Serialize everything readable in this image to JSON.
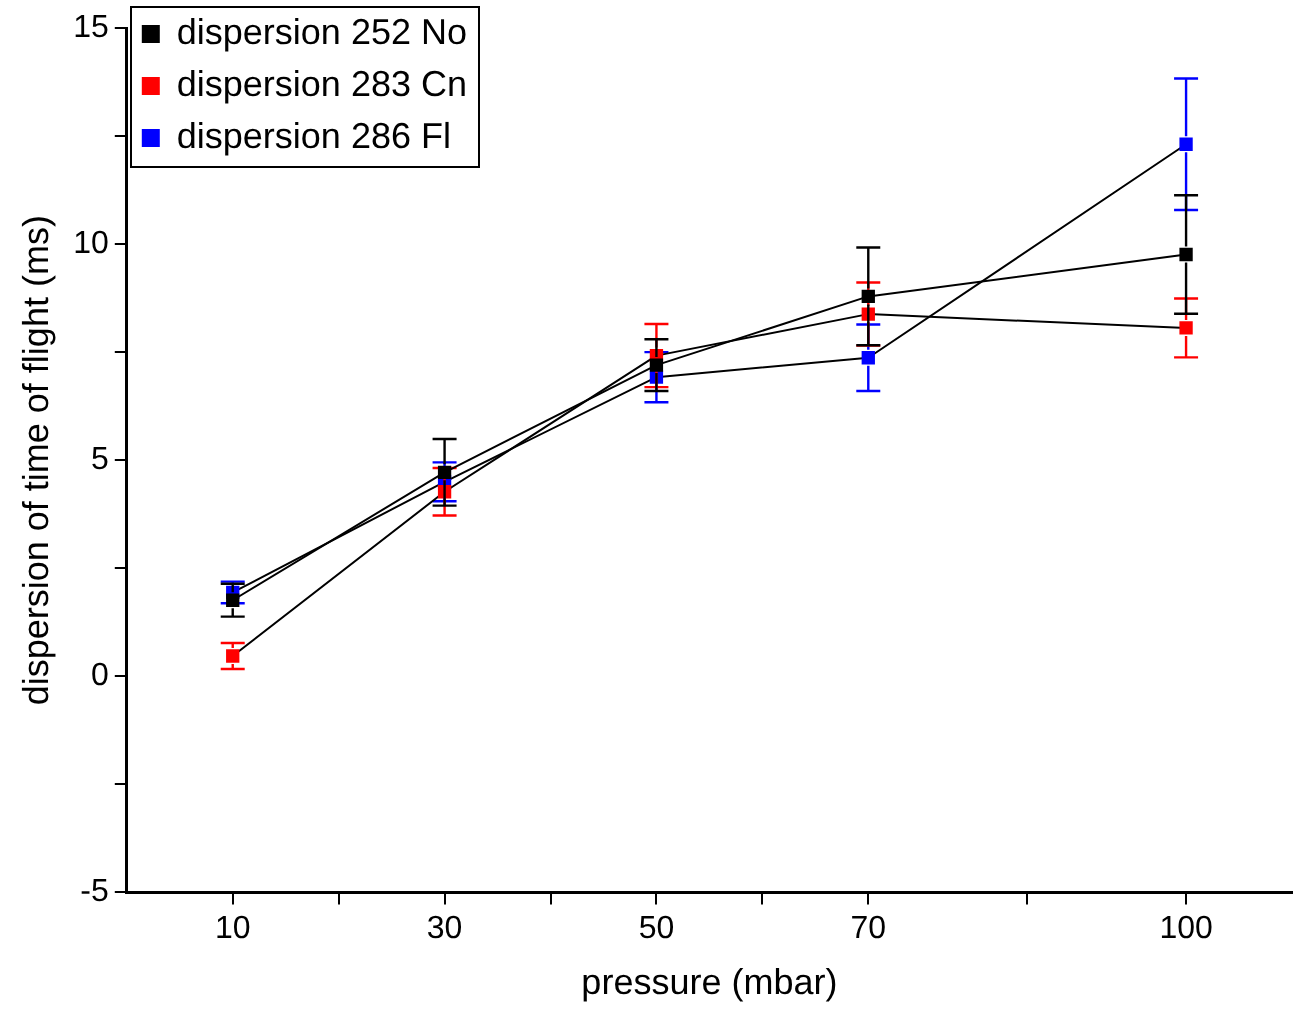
{
  "chart_data": {
    "type": "line",
    "xlabel": "pressure (mbar)",
    "ylabel": "dispersion of time of flight (ms)",
    "x": [
      10,
      30,
      50,
      70,
      100
    ],
    "xlim": [
      0,
      110
    ],
    "xticks": [
      10,
      {
        "value": 20,
        "label": null
      },
      30,
      {
        "value": 40,
        "label": null
      },
      50,
      {
        "value": 60,
        "label": null
      },
      70,
      {
        "value": 85,
        "label": null
      },
      100
    ],
    "ylim": [
      -5,
      15
    ],
    "yticks": [
      -5,
      {
        "value": -2.5,
        "label": null
      },
      0,
      {
        "value": 2.5,
        "label": null
      },
      5,
      {
        "value": 7.5,
        "label": null
      },
      10,
      {
        "value": 12.5,
        "label": null
      },
      15
    ],
    "grid": false,
    "legend": "top left",
    "marker": "square",
    "line_style": "solid",
    "series": [
      {
        "name": "dispersion 252 No",
        "color": "#000000",
        "values": [
          1.76,
          4.72,
          7.2,
          8.79,
          9.76
        ],
        "errors": [
          0.38,
          0.77,
          0.6,
          1.13,
          1.37
        ]
      },
      {
        "name": "dispersion 283 Cn",
        "color": "#ff0000",
        "values": [
          0.47,
          4.27,
          7.42,
          8.38,
          8.06
        ],
        "errors": [
          0.3,
          0.55,
          0.73,
          0.73,
          0.68
        ]
      },
      {
        "name": "dispersion 286 Fl",
        "color": "#0000ff",
        "values": [
          1.94,
          4.5,
          6.92,
          7.37,
          12.31
        ],
        "errors": [
          0.25,
          0.45,
          0.58,
          0.77,
          1.52
        ]
      }
    ]
  }
}
